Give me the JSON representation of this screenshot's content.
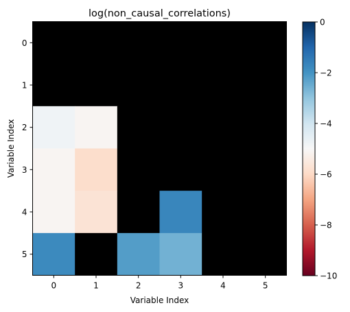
{
  "chart_data": {
    "type": "heatmap",
    "title": "log(non_causal_correlations)",
    "xlabel": "Variable Index",
    "ylabel": "Variable Index",
    "x_ticks": [
      "0",
      "1",
      "2",
      "3",
      "4",
      "5"
    ],
    "y_ticks": [
      "0",
      "1",
      "2",
      "3",
      "4",
      "5"
    ],
    "colormap": "RdBu",
    "vmin": -10,
    "vmax": 0,
    "colorbar_ticks": [
      "0",
      "−2",
      "−4",
      "−6",
      "−8",
      "−10"
    ],
    "colorbar_tick_values": [
      0,
      -2,
      -4,
      -6,
      -8,
      -10
    ],
    "nan_color": "#000000",
    "grid": false,
    "values": [
      [
        null,
        null,
        null,
        null,
        null,
        null
      ],
      [
        null,
        null,
        null,
        null,
        null,
        null
      ],
      [
        -4.8,
        -5.1,
        null,
        null,
        null,
        null
      ],
      [
        -5.1,
        -5.9,
        null,
        null,
        null,
        null
      ],
      [
        -5.1,
        -5.7,
        null,
        -1.7,
        null,
        null
      ],
      [
        -1.8,
        null,
        -2.2,
        -2.6,
        null,
        null
      ]
    ]
  }
}
